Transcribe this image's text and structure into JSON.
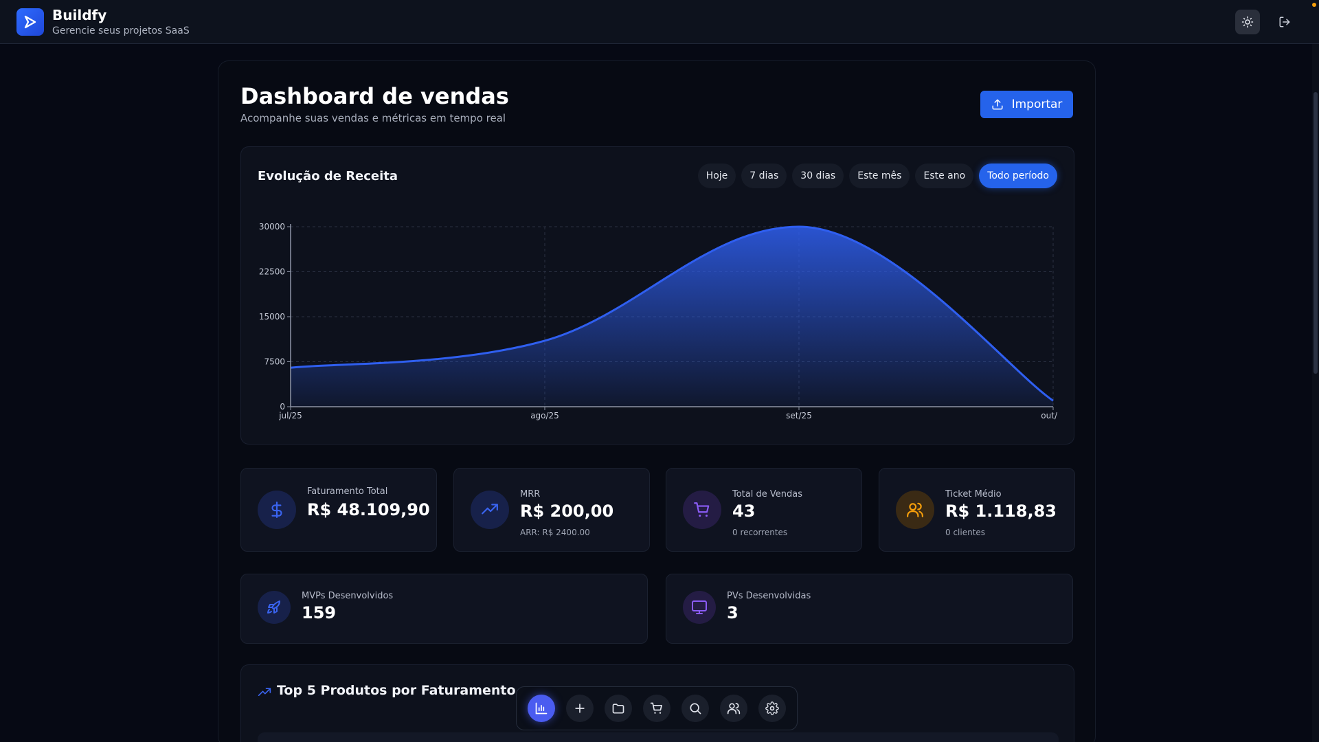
{
  "app": {
    "name": "Buildfy",
    "subtitle": "Gerencie seus projetos SaaS"
  },
  "page": {
    "title": "Dashboard de vendas",
    "subtitle": "Acompanhe suas vendas e métricas em tempo real",
    "import_label": "Importar"
  },
  "chart_card": {
    "title": "Evolução de Receita",
    "filters": [
      "Hoje",
      "7 dias",
      "30 dias",
      "Este mês",
      "Este ano",
      "Todo período"
    ],
    "active_filter": "Todo período"
  },
  "chart_data": {
    "type": "area",
    "title": "Evolução de Receita",
    "x": [
      "jul/25",
      "ago/25",
      "set/25",
      "out/"
    ],
    "values": [
      6500,
      11000,
      30000,
      1000
    ],
    "y_ticks": [
      "30000",
      "22500",
      "15000",
      "7500",
      "0"
    ],
    "ylim": [
      0,
      30000
    ],
    "grid": true,
    "color": "#2f5ff0"
  },
  "kpis": [
    {
      "label": "Faturamento Total",
      "value": "R$ 48.109,90",
      "sub": "",
      "icon": "dollar-icon",
      "icon_color": "#3a64f0",
      "icon_bg": "#17214a"
    },
    {
      "label": "MRR",
      "value": "R$ 200,00",
      "sub": "ARR: R$ 2400.00",
      "icon": "trending-up-icon",
      "icon_color": "#3a64f0",
      "icon_bg": "#17214a"
    },
    {
      "label": "Total de Vendas",
      "value": "43",
      "sub": "0 recorrentes",
      "icon": "cart-icon",
      "icon_color": "#8b5cf6",
      "icon_bg": "#241c44"
    },
    {
      "label": "Ticket Médio",
      "value": "R$ 1.118,83",
      "sub": "0 clientes",
      "icon": "users-icon",
      "icon_color": "#f59e0b",
      "icon_bg": "#3a2a14"
    }
  ],
  "wide_kpis": [
    {
      "label": "MVPs Desenvolvidos",
      "value": "159",
      "icon": "rocket-icon",
      "icon_color": "#3a64f0",
      "icon_bg": "#17214a"
    },
    {
      "label": "PVs Desenvolvidas",
      "value": "3",
      "icon": "monitor-icon",
      "icon_color": "#8b5cf6",
      "icon_bg": "#241c44"
    }
  ],
  "products": {
    "title": "Top 5 Produtos por Faturamento"
  },
  "dock": [
    "chart-icon",
    "plus-icon",
    "folder-icon",
    "cart-icon",
    "search-icon",
    "users-icon",
    "gear-icon"
  ]
}
